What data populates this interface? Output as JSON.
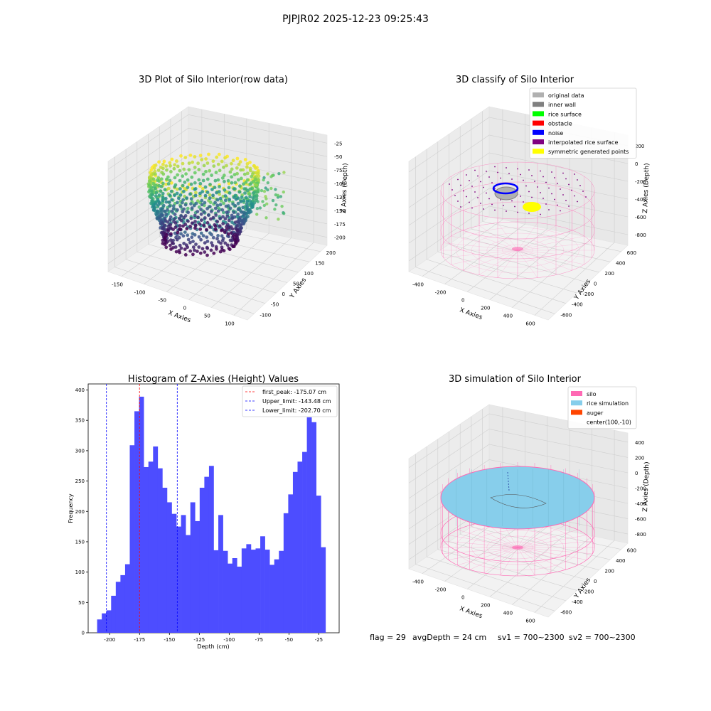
{
  "figure": {
    "suptitle": "PJPJR02 2025-12-23 09:25:43",
    "footer": {
      "flag": "flag = 29",
      "avgDepth": "avgDepth = 24 cm",
      "sv1": "sv1 = 700~2300",
      "sv2": "sv2 = 700~2300"
    }
  },
  "colors": {
    "histogram_bar": "#4d4dff",
    "first_peak_line": "#ff0000",
    "limit_lines": "#0000ff",
    "silo_pink": "#ff69b4",
    "rice_blue": "#87ceeb",
    "auger": "#ff4500"
  },
  "chart_data": [
    {
      "type": "scatter3d",
      "title": "3D Plot of Silo Interior(row data)",
      "xlabel": "X Axies",
      "ylabel": "Y Axies",
      "zlabel": "Z Axies (Depth)",
      "x_ticks": [
        "-150",
        "-100",
        "-50",
        "0",
        "50",
        "100"
      ],
      "y_ticks": [
        "-100",
        "-50",
        "0",
        "50",
        "100",
        "150",
        "200"
      ],
      "z_ticks": [
        "-25",
        "-50",
        "-75",
        "-100",
        "-125",
        "-150",
        "-175",
        "-200"
      ],
      "xlim": [
        -180,
        120
      ],
      "ylim": [
        -110,
        210
      ],
      "zlim": [
        -210,
        -10
      ],
      "colormap": "viridis",
      "grid": true
    },
    {
      "type": "scatter3d",
      "title": "3D classify of Silo Interior",
      "xlabel": "X Axies",
      "ylabel": "Y Axies",
      "zlabel": "Z Axies (Depth)",
      "x_ticks": [
        "-400",
        "-200",
        "0",
        "200",
        "400",
        "600"
      ],
      "y_ticks": [
        "-600",
        "-400",
        "-200",
        "0",
        "200",
        "400",
        "600"
      ],
      "z_ticks": [
        "200",
        "0",
        "-200",
        "-400",
        "-600",
        "-800"
      ],
      "legend": [
        {
          "label": "original data",
          "color": "#b0b0b0"
        },
        {
          "label": "inner wall",
          "color": "#808080"
        },
        {
          "label": "rice surface",
          "color": "#00ff00"
        },
        {
          "label": "obstacle",
          "color": "#ff0000"
        },
        {
          "label": "noise",
          "color": "#0000ff"
        },
        {
          "label": "interpolated rice surface",
          "color": "#800080"
        },
        {
          "label": "symmetric generated points",
          "color": "#ffff00"
        }
      ],
      "legend_location": "upper right",
      "grid": true
    },
    {
      "type": "bar",
      "title": "Histogram of Z-Axies (Height) Values",
      "xlabel": "Depth (cm)",
      "ylabel": "Frequency",
      "x_ticks": [
        -200,
        -175,
        -150,
        -125,
        -100,
        -75,
        -50,
        -25
      ],
      "y_ticks": [
        0,
        50,
        100,
        150,
        200,
        250,
        300,
        350,
        400
      ],
      "xlim": [
        -218,
        -8
      ],
      "ylim": [
        0,
        410
      ],
      "bin_start": -210.5,
      "bin_width": 3.9,
      "values": [
        22,
        32,
        37,
        61,
        84,
        95,
        113,
        309,
        365,
        389,
        273,
        282,
        307,
        271,
        239,
        215,
        196,
        175,
        194,
        161,
        215,
        184,
        239,
        257,
        275,
        136,
        194,
        135,
        114,
        123,
        109,
        139,
        146,
        137,
        139,
        159,
        137,
        112,
        121,
        135,
        197,
        228,
        265,
        282,
        298,
        355,
        347,
        226,
        141
      ],
      "vlines": [
        {
          "label": "first_peak: -175.07 cm",
          "x": -175.07,
          "color": "#ff0000"
        },
        {
          "label": "Upper_limit: -143.48 cm",
          "x": -143.48,
          "color": "#0000ff"
        },
        {
          "label": "Lower_limit: -202.70 cm",
          "x": -202.7,
          "color": "#0000ff"
        }
      ],
      "legend_location": "upper right"
    },
    {
      "type": "surface3d",
      "title": "3D simulation of Silo Interior",
      "xlabel": "X Axies",
      "ylabel": "Y Axies",
      "zlabel": "Z Axies (Depth)",
      "x_ticks": [
        "-400",
        "-200",
        "0",
        "200",
        "400",
        "600"
      ],
      "y_ticks": [
        "-600",
        "-400",
        "-200",
        "0",
        "200",
        "400",
        "600"
      ],
      "z_ticks": [
        "400",
        "200",
        "0",
        "-200",
        "-400",
        "-600",
        "-800"
      ],
      "legend": [
        {
          "label": "silo",
          "color": "#ff69b4"
        },
        {
          "label": "rice simulation",
          "color": "#87ceeb"
        },
        {
          "label": "auger",
          "color": "#ff4500"
        },
        {
          "label": "center(100,-10)",
          "color": ""
        }
      ],
      "legend_location": "upper right",
      "grid": true
    }
  ]
}
